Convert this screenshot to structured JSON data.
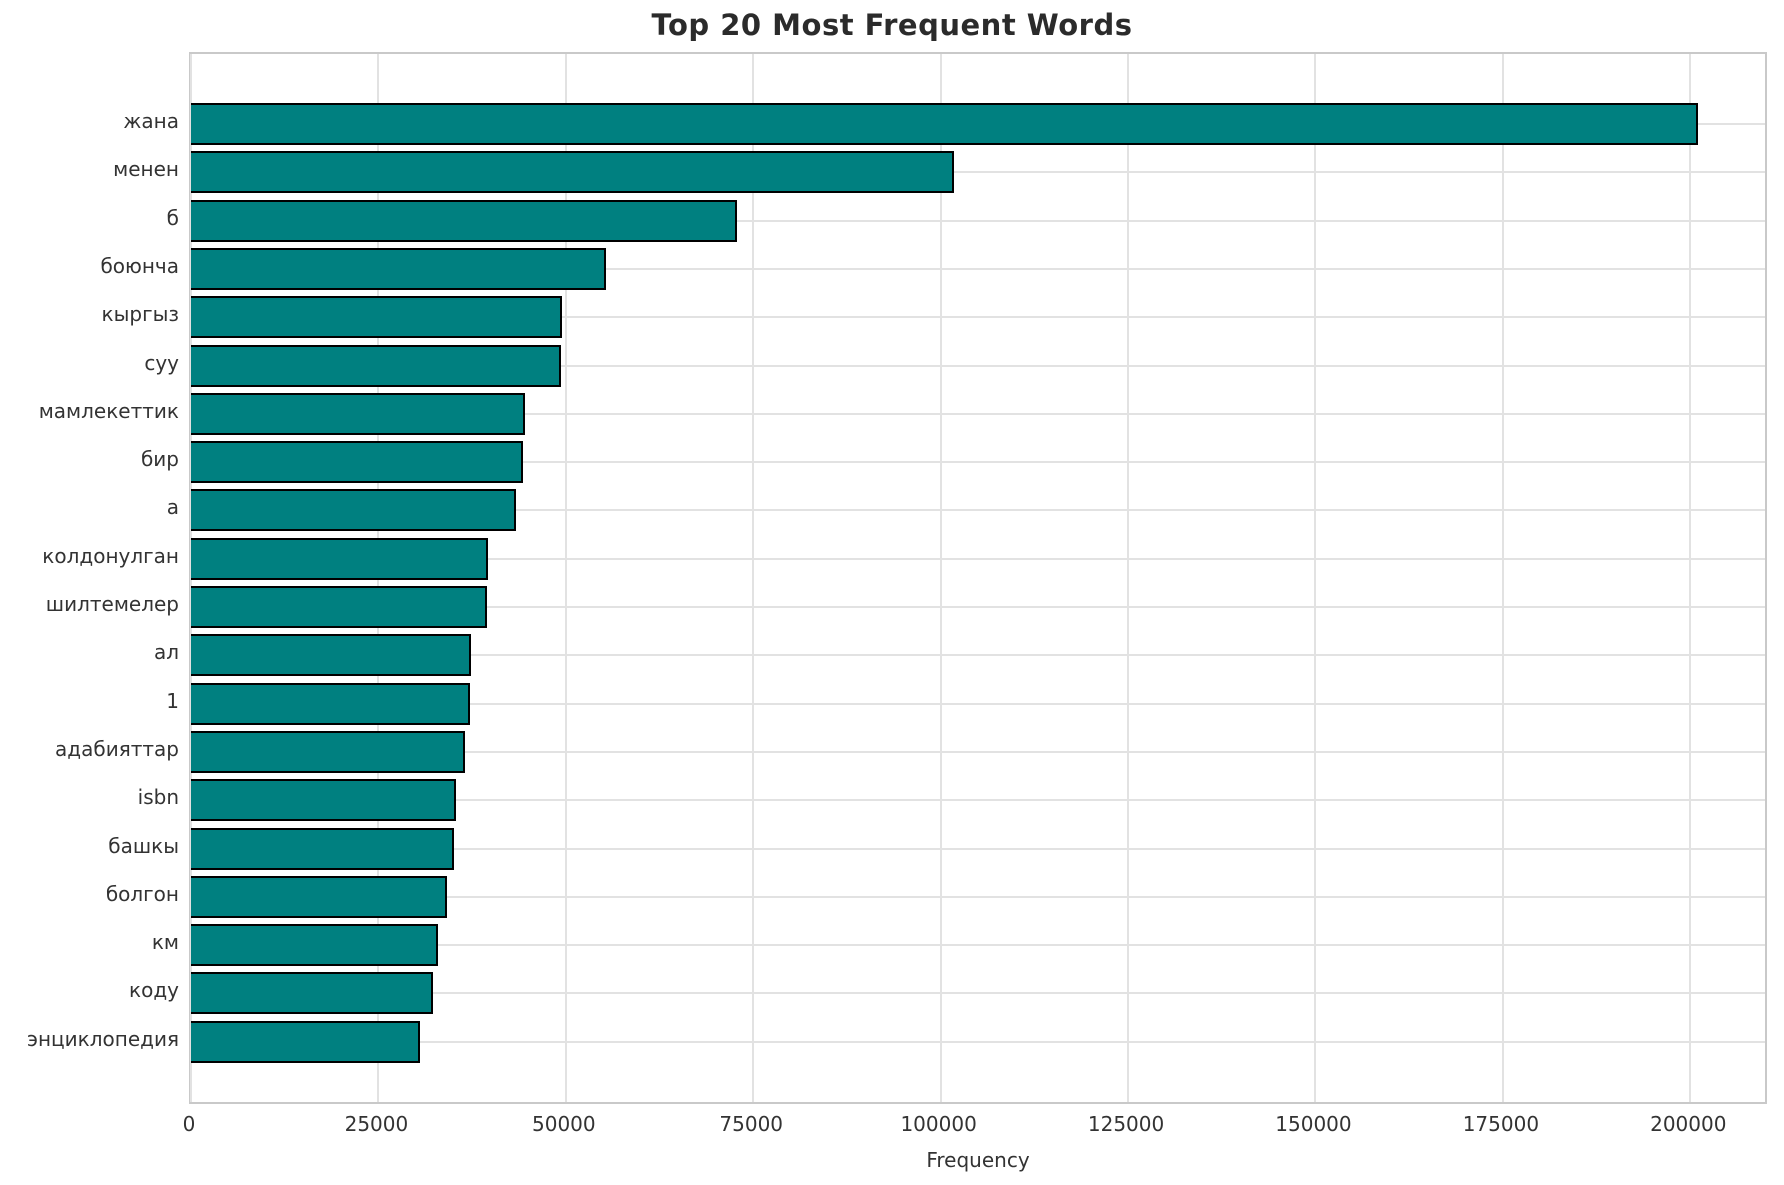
{
  "chart_data": {
    "type": "bar",
    "orientation": "horizontal",
    "title": "Top 20 Most Frequent Words",
    "xlabel": "Frequency",
    "ylabel": "",
    "categories": [
      "жана",
      "менен",
      "б",
      "боюнча",
      "кыргыз",
      "суу",
      "мамлекеттик",
      "бир",
      "а",
      "колдонулган",
      "шилтемелер",
      "ал",
      "1",
      "адабияттар",
      "isbn",
      "башкы",
      "болгон",
      "км",
      "коду",
      "энциклопедия"
    ],
    "values": [
      201000,
      101800,
      72800,
      55400,
      49500,
      49400,
      44600,
      44300,
      43400,
      39600,
      39500,
      37400,
      37200,
      36600,
      35400,
      35100,
      34100,
      33000,
      32300,
      30600
    ],
    "xlim": [
      0,
      210500
    ],
    "xticks": [
      0,
      25000,
      50000,
      75000,
      100000,
      125000,
      150000,
      175000,
      200000
    ],
    "grid": true,
    "legend": false,
    "colors": {
      "bar_fill": "#008080",
      "bar_edge": "#000000",
      "grid": "#e2e2e2",
      "spine": "#c9c9c9",
      "text": "#333333",
      "title": "#2b2b2b",
      "background": "#ffffff"
    }
  }
}
